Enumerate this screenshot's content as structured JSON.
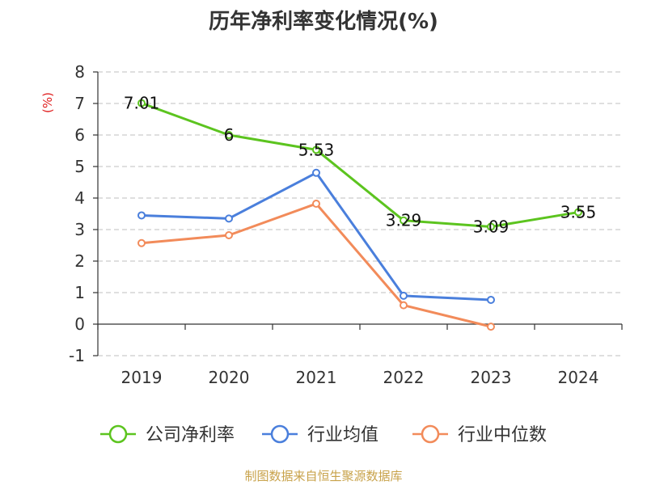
{
  "chart_data": {
    "type": "line",
    "title": "历年净利率变化情况(%)",
    "ylabel": "(%)",
    "xlabel": "",
    "categories": [
      "2019",
      "2020",
      "2021",
      "2022",
      "2023",
      "2024"
    ],
    "ylim": [
      -1,
      8
    ],
    "yticks": [
      "-1",
      "0",
      "1",
      "2",
      "3",
      "4",
      "5",
      "6",
      "7",
      "8"
    ],
    "grid": true,
    "legend_position": "bottom",
    "series": [
      {
        "name": "公司净利率",
        "color": "#5cc41f",
        "values": [
          7.01,
          6,
          5.53,
          3.29,
          3.09,
          3.55
        ],
        "labels": [
          "7.01",
          "6",
          "5.53",
          "3.29",
          "3.09",
          "3.55"
        ]
      },
      {
        "name": "行业均值",
        "color": "#4a7fdc",
        "values": [
          3.45,
          3.35,
          4.8,
          0.9,
          0.77,
          null
        ]
      },
      {
        "name": "行业中位数",
        "color": "#f28b5a",
        "values": [
          2.57,
          2.82,
          3.82,
          0.6,
          -0.08,
          null
        ]
      }
    ]
  },
  "source_text": "制图数据来自恒生聚源数据库"
}
